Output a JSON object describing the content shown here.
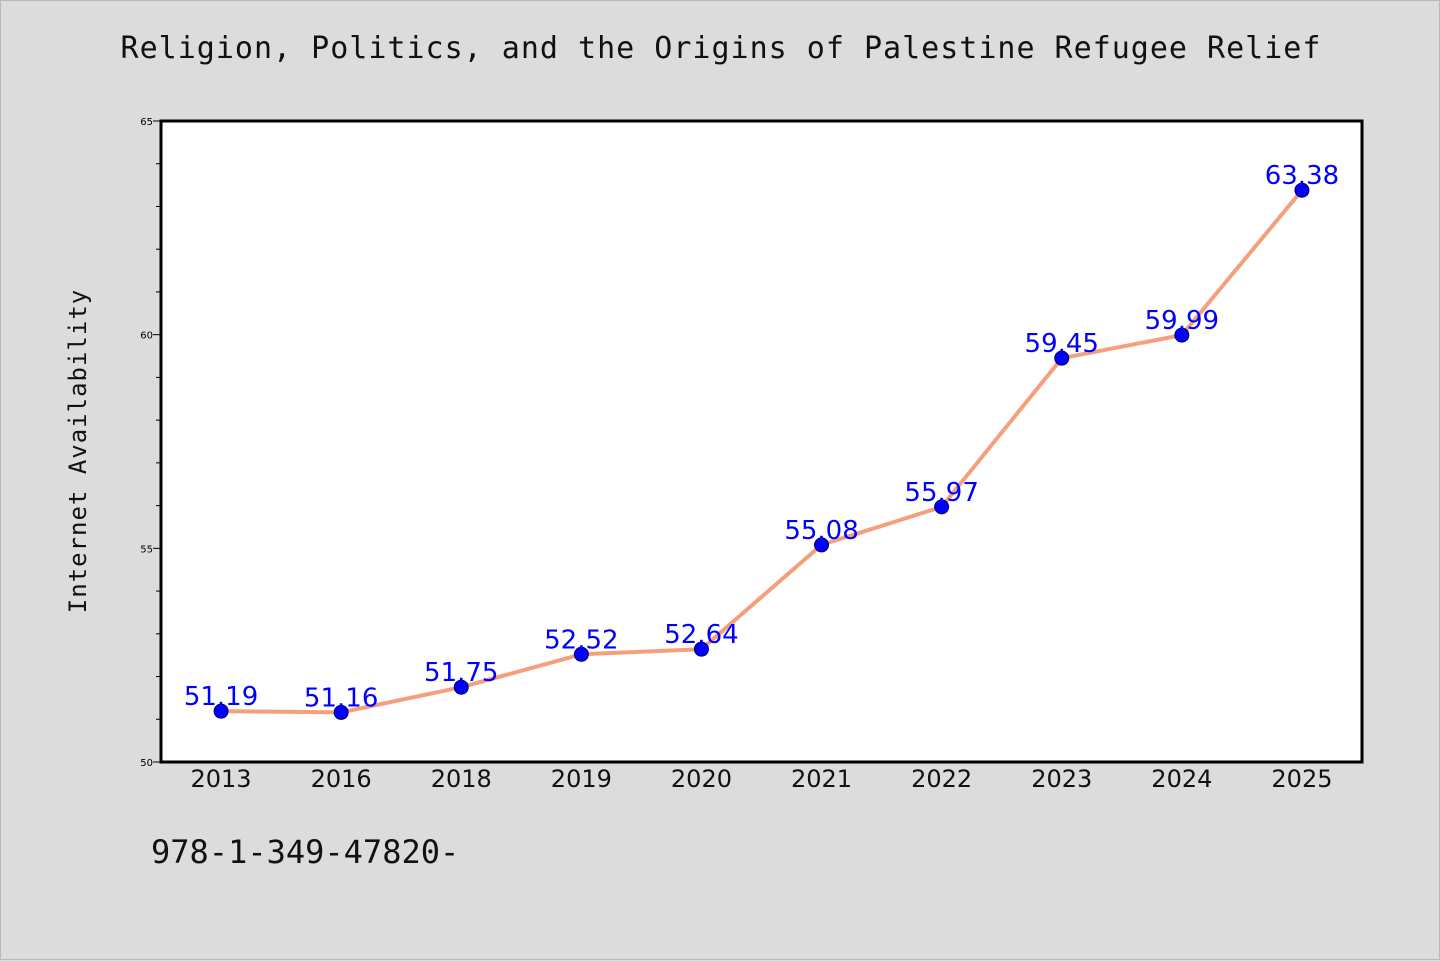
{
  "chart_data": {
    "type": "line",
    "title": "Religion, Politics, and the Origins of Palestine Refugee Relief",
    "xlabel": "",
    "ylabel": "Internet Availability",
    "categories": [
      "2013",
      "2016",
      "2018",
      "2019",
      "2020",
      "2021",
      "2022",
      "2023",
      "2024",
      "2025"
    ],
    "series": [
      {
        "values": [
          51.19,
          51.16,
          51.75,
          52.52,
          52.64,
          55.08,
          55.97,
          59.45,
          59.99,
          63.38
        ],
        "labels": [
          "51.19",
          "51.16",
          "51.75",
          "52.52",
          "52.64",
          "55.08",
          "55.97",
          "59.45",
          "59.99",
          "63.38"
        ],
        "line_color": "#f4a07c",
        "marker_color": "#0000ff"
      }
    ],
    "ylim": [
      50,
      65
    ],
    "yticks": [
      "50",
      "55",
      "60",
      "65"
    ],
    "grid": false,
    "legend": "none"
  },
  "footer": {
    "text": "978-1-349-47820-"
  },
  "colors": {
    "background": "#dcdcdc",
    "plot_area": "#ffffff",
    "label_text": "#0000ff"
  }
}
